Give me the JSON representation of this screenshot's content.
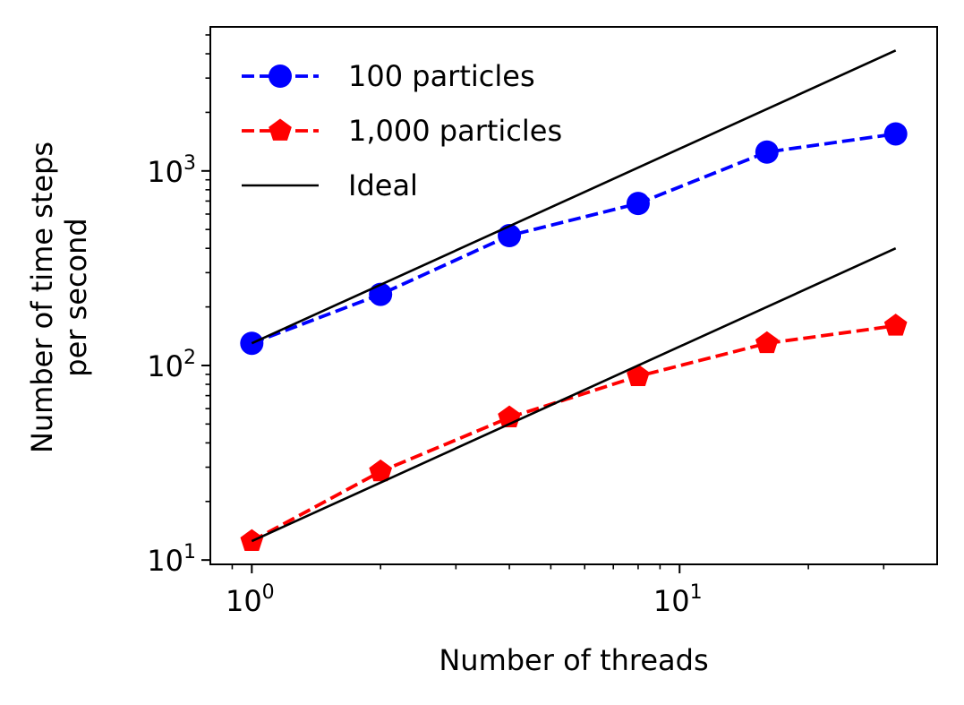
{
  "chart_data": {
    "type": "line",
    "title": "",
    "xlabel": "Number of threads",
    "ylabel_lines": [
      "Number of time steps",
      "per second"
    ],
    "xscale": "log",
    "yscale": "log",
    "xlim": [
      0.8,
      40
    ],
    "ylim": [
      9.5,
      5500
    ],
    "grid": false,
    "legend_position": "top-left",
    "x_ticks": [
      {
        "value": 1,
        "base": "10",
        "exp": "0"
      },
      {
        "value": 10,
        "base": "10",
        "exp": "1"
      }
    ],
    "y_ticks": [
      {
        "value": 10,
        "base": "10",
        "exp": "1"
      },
      {
        "value": 100,
        "base": "10",
        "exp": "2"
      },
      {
        "value": 1000,
        "base": "10",
        "exp": "3"
      }
    ],
    "series": [
      {
        "name": "100 particles",
        "color": "#0000ff",
        "marker": "circle",
        "linestyle": "dashed",
        "x": [
          1,
          2,
          4,
          8,
          16,
          32
        ],
        "values": [
          130,
          232,
          465,
          680,
          1250,
          1550
        ]
      },
      {
        "name": "1,000 particles",
        "color": "#ff0000",
        "marker": "pentagon",
        "linestyle": "dashed",
        "x": [
          1,
          2,
          4,
          8,
          16,
          32
        ],
        "values": [
          12.5,
          28.5,
          54,
          88,
          130,
          160
        ]
      },
      {
        "name": "Ideal",
        "color": "#000000",
        "marker": "none",
        "linestyle": "solid",
        "x": [
          1,
          32
        ],
        "values": [
          130,
          4160
        ]
      },
      {
        "name": "Ideal",
        "color": "#000000",
        "marker": "none",
        "linestyle": "solid",
        "x": [
          1,
          32
        ],
        "values": [
          12.5,
          400
        ],
        "in_legend": false
      }
    ]
  }
}
